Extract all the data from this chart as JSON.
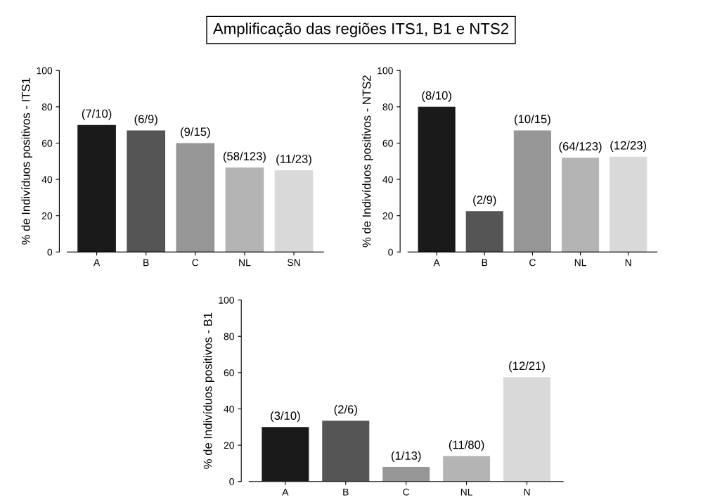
{
  "chart_data": [
    {
      "type": "bar",
      "title": "Amplificação das regiões ITS1, B1 e NTS2",
      "ylabel": "% de Indivíduos positivos - ITS1",
      "categories": [
        "A",
        "B",
        "C",
        "NL",
        "SN"
      ],
      "values": [
        70,
        67,
        60,
        46.5,
        45
      ],
      "colors": [
        "#1a1a1a",
        "#555555",
        "#969696",
        "#b4b4b4",
        "#d9d9d9"
      ],
      "value_labels": [
        "(7/10)",
        "(6/9)",
        "(9/15)",
        "(58/123)",
        "(11/23)"
      ],
      "ylim": [
        0,
        100
      ],
      "yticks": [
        0,
        20,
        40,
        60,
        80,
        100
      ],
      "grid": false,
      "legend": false
    },
    {
      "type": "bar",
      "ylabel": "% de Indivíduos positivos - NTS2",
      "categories": [
        "A",
        "B",
        "C",
        "NL",
        "N"
      ],
      "values": [
        80,
        22.5,
        67,
        52,
        52.5
      ],
      "colors": [
        "#1a1a1a",
        "#555555",
        "#969696",
        "#b4b4b4",
        "#d9d9d9"
      ],
      "value_labels": [
        "(8/10)",
        "(2/9)",
        "(10/15)",
        "(64/123)",
        "(12/23)"
      ],
      "ylim": [
        0,
        100
      ],
      "yticks": [
        0,
        20,
        40,
        60,
        80,
        100
      ],
      "grid": false,
      "legend": false
    },
    {
      "type": "bar",
      "ylabel": "% de Indivíduos positivos - B1",
      "categories": [
        "A",
        "B",
        "C",
        "NL",
        "N"
      ],
      "values": [
        30,
        33.5,
        8,
        14,
        57.5
      ],
      "colors": [
        "#1a1a1a",
        "#555555",
        "#969696",
        "#b4b4b4",
        "#d9d9d9"
      ],
      "value_labels": [
        "(3/10)",
        "(2/6)",
        "(1/13)",
        "(11/80)",
        "(12/21)"
      ],
      "ylim": [
        0,
        100
      ],
      "yticks": [
        0,
        20,
        40,
        60,
        80,
        100
      ],
      "grid": false,
      "legend": false
    }
  ]
}
